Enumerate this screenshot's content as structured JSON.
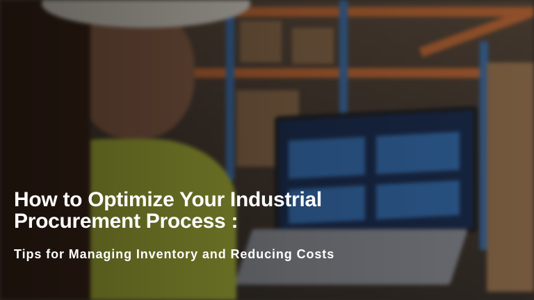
{
  "banner": {
    "title_line1": "How to Optimize Your Industrial",
    "title_line2": "Procurement Process :",
    "subtitle": "Tips for Managing Inventory and Reducing Costs"
  },
  "colors": {
    "text": "#ffffff",
    "shelf_accent": "#c06a38",
    "rack_blue": "#3f6fa8"
  }
}
